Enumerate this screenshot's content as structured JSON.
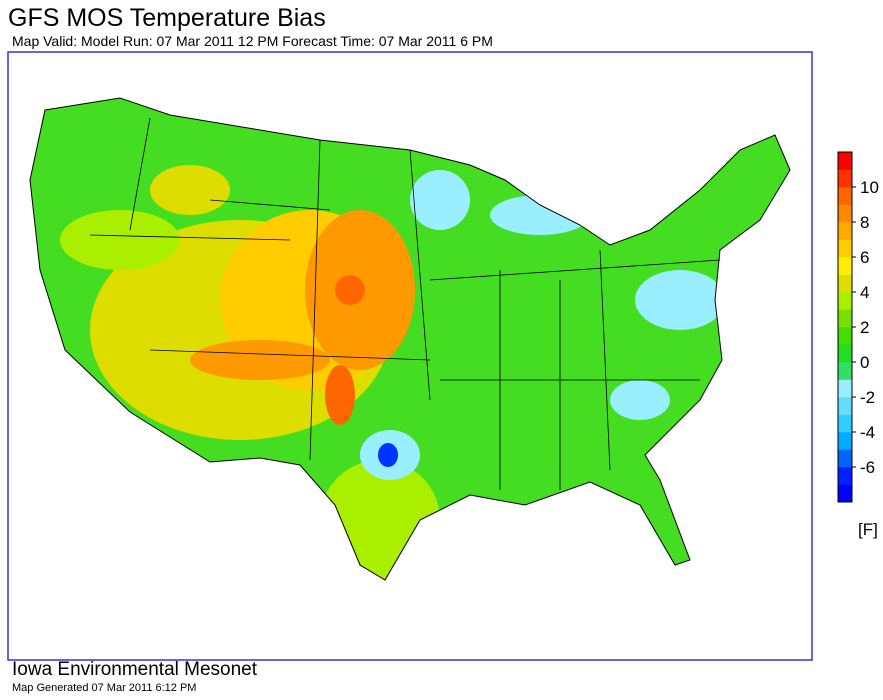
{
  "header": {
    "title": "GFS MOS Temperature Bias",
    "subtitle": "Map Valid: Model Run: 07 Mar 2011 12 PM Forecast Time: 07 Mar 2011 6 PM"
  },
  "colorbar": {
    "range": [
      -8,
      12
    ],
    "ticks": [
      -6,
      -4,
      -2,
      0,
      2,
      4,
      6,
      8,
      10
    ],
    "unit": "[F]",
    "colors": [
      "#0000ff",
      "#0022ff",
      "#0066ff",
      "#00aaff",
      "#33ccff",
      "#66ddff",
      "#99eeff",
      "#33dd66",
      "#22dd22",
      "#44dd00",
      "#77e000",
      "#aaee00",
      "#dddd00",
      "#ffee00",
      "#ffcc00",
      "#ffaa00",
      "#ff8800",
      "#ff6600",
      "#ff3300",
      "#ff0000"
    ]
  },
  "footer": {
    "organization": "Iowa Environmental Mesonet",
    "generated": "Map Generated 07 Mar 2011 6:12 PM"
  }
}
